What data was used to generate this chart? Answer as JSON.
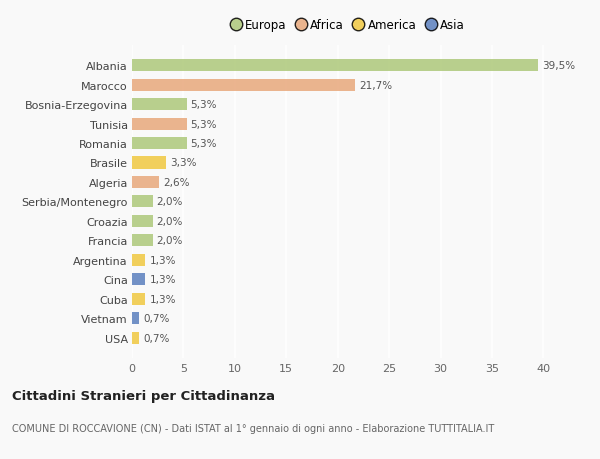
{
  "countries": [
    "Albania",
    "Marocco",
    "Bosnia-Erzegovina",
    "Tunisia",
    "Romania",
    "Brasile",
    "Algeria",
    "Serbia/Montenegro",
    "Croazia",
    "Francia",
    "Argentina",
    "Cina",
    "Cuba",
    "Vietnam",
    "USA"
  ],
  "values": [
    39.5,
    21.7,
    5.3,
    5.3,
    5.3,
    3.3,
    2.6,
    2.0,
    2.0,
    2.0,
    1.3,
    1.3,
    1.3,
    0.7,
    0.7
  ],
  "labels": [
    "39,5%",
    "21,7%",
    "5,3%",
    "5,3%",
    "5,3%",
    "3,3%",
    "2,6%",
    "2,0%",
    "2,0%",
    "2,0%",
    "1,3%",
    "1,3%",
    "1,3%",
    "0,7%",
    "0,7%"
  ],
  "continents": [
    "Europa",
    "Africa",
    "Europa",
    "Africa",
    "Europa",
    "America",
    "Africa",
    "Europa",
    "Europa",
    "Europa",
    "America",
    "Asia",
    "America",
    "Asia",
    "America"
  ],
  "colors": {
    "Europa": "#adc87a",
    "Africa": "#e8a87c",
    "America": "#f0c840",
    "Asia": "#5b7fbe"
  },
  "legend_order": [
    "Europa",
    "Africa",
    "America",
    "Asia"
  ],
  "legend_colors": [
    "#adc87a",
    "#e8a87c",
    "#f0c840",
    "#5b7fbe"
  ],
  "xlim": [
    0,
    42
  ],
  "xticks": [
    0,
    5,
    10,
    15,
    20,
    25,
    30,
    35,
    40
  ],
  "title": "Cittadini Stranieri per Cittadinanza",
  "subtitle": "COMUNE DI ROCCAVIONE (CN) - Dati ISTAT al 1° gennaio di ogni anno - Elaborazione TUTTITALIA.IT",
  "background_color": "#f9f9f9",
  "grid_color": "#ffffff"
}
